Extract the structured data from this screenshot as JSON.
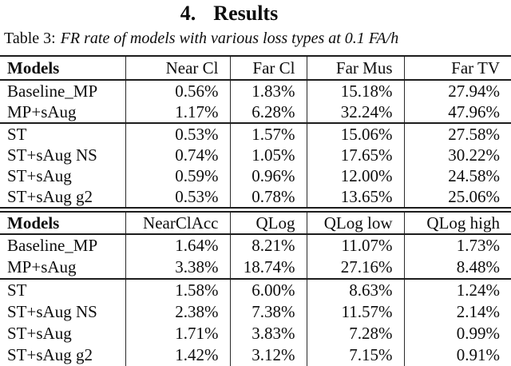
{
  "page": {
    "section_number": "4.",
    "section_title": "Results",
    "caption_prefix": "Table 3:",
    "caption_text": "FR rate of models with various loss types at 0.1 FA/h"
  },
  "tables": [
    {
      "columns": [
        "Models",
        "Near Cl",
        "Far Cl",
        "Far Mus",
        "Far TV"
      ],
      "groups": [
        {
          "rows": [
            {
              "model": "Baseline_MP",
              "values": [
                "0.56%",
                "1.83%",
                "15.18%",
                "27.94%"
              ]
            },
            {
              "model": "MP+sAug",
              "values": [
                "1.17%",
                "6.28%",
                "32.24%",
                "47.96%"
              ]
            }
          ]
        },
        {
          "rows": [
            {
              "model": "ST",
              "values": [
                "0.53%",
                "1.57%",
                "15.06%",
                "27.58%"
              ]
            },
            {
              "model": "ST+sAug NS",
              "values": [
                "0.74%",
                "1.05%",
                "17.65%",
                "30.22%"
              ]
            },
            {
              "model": "ST+sAug",
              "values": [
                "0.59%",
                "0.96%",
                "12.00%",
                "24.58%"
              ]
            },
            {
              "model": "ST+sAug g2",
              "values": [
                "0.53%",
                "0.78%",
                "13.65%",
                "25.06%"
              ]
            }
          ]
        }
      ]
    },
    {
      "columns": [
        "Models",
        "NearClAcc",
        "QLog",
        "QLog low",
        "QLog high"
      ],
      "groups": [
        {
          "rows": [
            {
              "model": "Baseline_MP",
              "values": [
                "1.64%",
                "8.21%",
                "11.07%",
                "1.73%"
              ]
            },
            {
              "model": "MP+sAug",
              "values": [
                "3.38%",
                "18.74%",
                "27.16%",
                "8.48%"
              ]
            }
          ]
        },
        {
          "rows": [
            {
              "model": "ST",
              "values": [
                "1.58%",
                "6.00%",
                "8.63%",
                "1.24%"
              ]
            },
            {
              "model": "ST+sAug NS",
              "values": [
                "2.38%",
                "7.38%",
                "11.57%",
                "2.14%"
              ]
            },
            {
              "model": "ST+sAug",
              "values": [
                "1.71%",
                "3.83%",
                "7.28%",
                "0.99%"
              ]
            },
            {
              "model": "ST+sAug g2",
              "values": [
                "1.42%",
                "3.12%",
                "7.15%",
                "0.91%"
              ]
            }
          ]
        }
      ]
    }
  ]
}
